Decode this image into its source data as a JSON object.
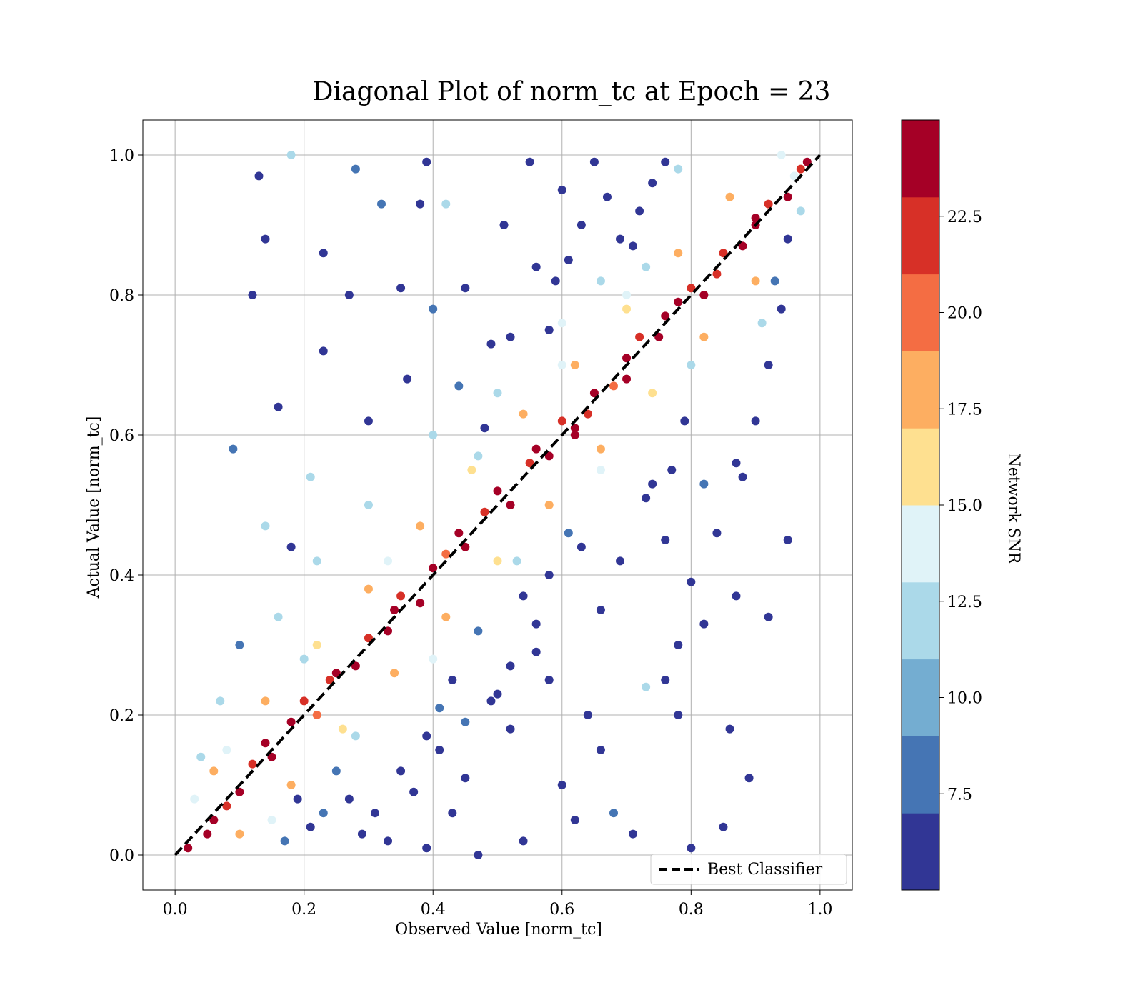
{
  "chart_data": {
    "type": "scatter",
    "title": "Diagonal Plot of norm_tc at Epoch = 23",
    "xlabel": "Observed Value [norm_tc]",
    "ylabel": "Actual Value [norm_tc]",
    "xlim": [
      -0.05,
      1.05
    ],
    "ylim": [
      -0.05,
      1.05
    ],
    "xticks": [
      "0.0",
      "0.2",
      "0.4",
      "0.6",
      "0.8",
      "1.0"
    ],
    "yticks": [
      "0.0",
      "0.2",
      "0.4",
      "0.6",
      "0.8",
      "1.0"
    ],
    "grid": true,
    "legend": {
      "position": "lower-right",
      "entries": [
        "Best Classifier"
      ]
    },
    "reference_line": {
      "name": "Best Classifier",
      "x": [
        0,
        1
      ],
      "y": [
        0,
        1
      ],
      "style": "dashed",
      "color": "#000000"
    },
    "colorbar": {
      "label": "Network SNR",
      "min": 5.0,
      "max": 25.0,
      "ticks": [
        "7.5",
        "10.0",
        "12.5",
        "15.0",
        "17.5",
        "20.0",
        "22.5"
      ],
      "colors": [
        "#313695",
        "#4575b4",
        "#74add1",
        "#abd9e9",
        "#e0f3f8",
        "#fee090",
        "#fdae61",
        "#f46d43",
        "#d73027",
        "#a50026"
      ]
    },
    "points": [
      [
        0.02,
        0.01,
        24
      ],
      [
        0.05,
        0.03,
        23
      ],
      [
        0.08,
        0.07,
        22
      ],
      [
        0.1,
        0.09,
        24
      ],
      [
        0.12,
        0.13,
        21
      ],
      [
        0.15,
        0.14,
        23
      ],
      [
        0.18,
        0.19,
        24
      ],
      [
        0.2,
        0.22,
        22
      ],
      [
        0.22,
        0.2,
        20
      ],
      [
        0.25,
        0.26,
        24
      ],
      [
        0.28,
        0.27,
        23
      ],
      [
        0.3,
        0.31,
        21
      ],
      [
        0.33,
        0.32,
        24
      ],
      [
        0.35,
        0.37,
        22
      ],
      [
        0.38,
        0.36,
        23
      ],
      [
        0.4,
        0.41,
        24
      ],
      [
        0.42,
        0.43,
        20
      ],
      [
        0.45,
        0.44,
        24
      ],
      [
        0.48,
        0.49,
        22
      ],
      [
        0.5,
        0.52,
        23
      ],
      [
        0.52,
        0.5,
        24
      ],
      [
        0.55,
        0.56,
        21
      ],
      [
        0.58,
        0.57,
        24
      ],
      [
        0.6,
        0.62,
        22
      ],
      [
        0.62,
        0.61,
        23
      ],
      [
        0.65,
        0.66,
        24
      ],
      [
        0.68,
        0.67,
        20
      ],
      [
        0.7,
        0.71,
        24
      ],
      [
        0.72,
        0.74,
        22
      ],
      [
        0.75,
        0.74,
        23
      ],
      [
        0.78,
        0.79,
        24
      ],
      [
        0.8,
        0.81,
        21
      ],
      [
        0.82,
        0.8,
        24
      ],
      [
        0.85,
        0.86,
        22
      ],
      [
        0.88,
        0.87,
        23
      ],
      [
        0.9,
        0.91,
        24
      ],
      [
        0.92,
        0.93,
        21
      ],
      [
        0.95,
        0.94,
        24
      ],
      [
        0.97,
        0.98,
        22
      ],
      [
        0.98,
        0.99,
        23
      ],
      [
        0.06,
        0.12,
        18
      ],
      [
        0.14,
        0.22,
        17
      ],
      [
        0.22,
        0.3,
        16
      ],
      [
        0.3,
        0.38,
        18
      ],
      [
        0.38,
        0.47,
        17
      ],
      [
        0.46,
        0.55,
        16
      ],
      [
        0.54,
        0.63,
        18
      ],
      [
        0.62,
        0.7,
        17
      ],
      [
        0.7,
        0.78,
        16
      ],
      [
        0.78,
        0.86,
        18
      ],
      [
        0.86,
        0.94,
        17
      ],
      [
        0.1,
        0.03,
        18
      ],
      [
        0.18,
        0.1,
        17
      ],
      [
        0.26,
        0.18,
        16
      ],
      [
        0.34,
        0.26,
        18
      ],
      [
        0.42,
        0.34,
        17
      ],
      [
        0.5,
        0.42,
        16
      ],
      [
        0.58,
        0.5,
        18
      ],
      [
        0.66,
        0.58,
        17
      ],
      [
        0.74,
        0.66,
        16
      ],
      [
        0.82,
        0.74,
        18
      ],
      [
        0.9,
        0.82,
        17
      ],
      [
        0.08,
        0.15,
        13
      ],
      [
        0.2,
        0.28,
        12
      ],
      [
        0.33,
        0.42,
        14
      ],
      [
        0.47,
        0.57,
        12
      ],
      [
        0.6,
        0.7,
        13
      ],
      [
        0.73,
        0.84,
        12
      ],
      [
        0.15,
        0.05,
        13
      ],
      [
        0.28,
        0.17,
        12
      ],
      [
        0.4,
        0.28,
        14
      ],
      [
        0.53,
        0.42,
        12
      ],
      [
        0.66,
        0.55,
        13
      ],
      [
        0.8,
        0.7,
        12
      ],
      [
        0.13,
        0.97,
        6
      ],
      [
        0.14,
        0.88,
        6
      ],
      [
        0.18,
        1.0,
        11
      ],
      [
        0.23,
        0.86,
        6
      ],
      [
        0.28,
        0.98,
        8
      ],
      [
        0.32,
        0.93,
        8
      ],
      [
        0.38,
        0.93,
        6
      ],
      [
        0.39,
        0.99,
        6
      ],
      [
        0.42,
        0.93,
        12
      ],
      [
        0.45,
        0.81,
        6
      ],
      [
        0.49,
        0.73,
        6
      ],
      [
        0.51,
        0.9,
        6
      ],
      [
        0.55,
        0.99,
        6
      ],
      [
        0.58,
        0.75,
        6
      ],
      [
        0.6,
        0.95,
        6
      ],
      [
        0.12,
        0.8,
        6
      ],
      [
        0.27,
        0.8,
        6
      ],
      [
        0.35,
        0.81,
        6
      ],
      [
        0.23,
        0.72,
        6
      ],
      [
        0.16,
        0.64,
        6
      ],
      [
        0.09,
        0.58,
        8
      ],
      [
        0.14,
        0.47,
        11
      ],
      [
        0.18,
        0.44,
        6
      ],
      [
        0.21,
        0.54,
        12
      ],
      [
        0.3,
        0.62,
        6
      ],
      [
        0.36,
        0.68,
        6
      ],
      [
        0.4,
        0.78,
        8
      ],
      [
        0.44,
        0.67,
        8
      ],
      [
        0.48,
        0.61,
        6
      ],
      [
        0.52,
        0.74,
        6
      ],
      [
        0.95,
        0.45,
        6
      ],
      [
        0.92,
        0.34,
        6
      ],
      [
        0.89,
        0.11,
        6
      ],
      [
        0.86,
        0.18,
        6
      ],
      [
        0.85,
        0.04,
        6
      ],
      [
        0.8,
        0.01,
        6
      ],
      [
        0.78,
        0.2,
        6
      ],
      [
        0.76,
        0.25,
        6
      ],
      [
        0.73,
        0.24,
        12
      ],
      [
        0.71,
        0.03,
        6
      ],
      [
        0.68,
        0.06,
        8
      ],
      [
        0.66,
        0.15,
        6
      ],
      [
        0.64,
        0.2,
        6
      ],
      [
        0.62,
        0.05,
        6
      ],
      [
        0.6,
        0.1,
        6
      ],
      [
        0.58,
        0.25,
        6
      ],
      [
        0.56,
        0.33,
        6
      ],
      [
        0.54,
        0.02,
        6
      ],
      [
        0.52,
        0.18,
        6
      ],
      [
        0.5,
        0.23,
        6
      ],
      [
        0.47,
        0.0,
        6
      ],
      [
        0.45,
        0.11,
        6
      ],
      [
        0.43,
        0.06,
        6
      ],
      [
        0.41,
        0.15,
        6
      ],
      [
        0.39,
        0.01,
        6
      ],
      [
        0.37,
        0.09,
        6
      ],
      [
        0.35,
        0.12,
        6
      ],
      [
        0.33,
        0.02,
        6
      ],
      [
        0.31,
        0.06,
        6
      ],
      [
        0.29,
        0.03,
        6
      ],
      [
        0.84,
        0.46,
        6
      ],
      [
        0.82,
        0.33,
        6
      ],
      [
        0.8,
        0.39,
        6
      ],
      [
        0.78,
        0.3,
        6
      ],
      [
        0.76,
        0.45,
        6
      ],
      [
        0.74,
        0.53,
        6
      ],
      [
        0.87,
        0.37,
        6
      ],
      [
        0.88,
        0.54,
        6
      ],
      [
        0.94,
        0.78,
        6
      ],
      [
        0.92,
        0.7,
        6
      ],
      [
        0.9,
        0.62,
        6
      ],
      [
        0.87,
        0.56,
        6
      ],
      [
        0.82,
        0.53,
        8
      ],
      [
        0.79,
        0.62,
        6
      ],
      [
        0.77,
        0.55,
        6
      ],
      [
        0.73,
        0.51,
        6
      ],
      [
        0.69,
        0.42,
        6
      ],
      [
        0.66,
        0.35,
        6
      ],
      [
        0.63,
        0.44,
        6
      ],
      [
        0.61,
        0.46,
        8
      ],
      [
        0.58,
        0.4,
        6
      ],
      [
        0.56,
        0.29,
        6
      ],
      [
        0.54,
        0.37,
        6
      ],
      [
        0.52,
        0.27,
        6
      ],
      [
        0.72,
        0.92,
        6
      ],
      [
        0.74,
        0.96,
        6
      ],
      [
        0.76,
        0.99,
        6
      ],
      [
        0.78,
        0.98,
        12
      ],
      [
        0.71,
        0.87,
        6
      ],
      [
        0.69,
        0.88,
        6
      ],
      [
        0.67,
        0.94,
        6
      ],
      [
        0.65,
        0.99,
        6
      ],
      [
        0.63,
        0.9,
        6
      ],
      [
        0.61,
        0.85,
        6
      ],
      [
        0.59,
        0.82,
        6
      ],
      [
        0.56,
        0.84,
        6
      ],
      [
        0.66,
        0.82,
        11
      ],
      [
        0.7,
        0.8,
        13
      ],
      [
        0.6,
        0.76,
        14
      ],
      [
        0.5,
        0.66,
        12
      ],
      [
        0.4,
        0.6,
        11
      ],
      [
        0.3,
        0.5,
        12
      ],
      [
        0.22,
        0.42,
        11
      ],
      [
        0.16,
        0.34,
        12
      ],
      [
        0.1,
        0.3,
        8
      ],
      [
        0.07,
        0.22,
        11
      ],
      [
        0.04,
        0.14,
        12
      ],
      [
        0.03,
        0.08,
        14
      ],
      [
        0.95,
        0.88,
        6
      ],
      [
        0.93,
        0.82,
        8
      ],
      [
        0.91,
        0.76,
        11
      ],
      [
        0.97,
        0.92,
        12
      ],
      [
        0.96,
        0.97,
        14
      ],
      [
        0.94,
        1.0,
        13
      ],
      [
        0.45,
        0.19,
        8
      ],
      [
        0.47,
        0.32,
        8
      ],
      [
        0.49,
        0.22,
        6
      ],
      [
        0.43,
        0.25,
        6
      ],
      [
        0.41,
        0.21,
        8
      ],
      [
        0.39,
        0.17,
        6
      ],
      [
        0.25,
        0.12,
        8
      ],
      [
        0.27,
        0.08,
        6
      ],
      [
        0.23,
        0.06,
        8
      ],
      [
        0.21,
        0.04,
        6
      ],
      [
        0.19,
        0.08,
        6
      ],
      [
        0.17,
        0.02,
        8
      ],
      [
        0.62,
        0.6,
        24
      ],
      [
        0.64,
        0.63,
        22
      ],
      [
        0.56,
        0.58,
        24
      ],
      [
        0.44,
        0.46,
        23
      ],
      [
        0.34,
        0.35,
        24
      ],
      [
        0.24,
        0.25,
        22
      ],
      [
        0.14,
        0.16,
        24
      ],
      [
        0.06,
        0.05,
        23
      ],
      [
        0.9,
        0.9,
        24
      ],
      [
        0.84,
        0.83,
        22
      ],
      [
        0.76,
        0.77,
        24
      ],
      [
        0.7,
        0.68,
        23
      ]
    ]
  }
}
